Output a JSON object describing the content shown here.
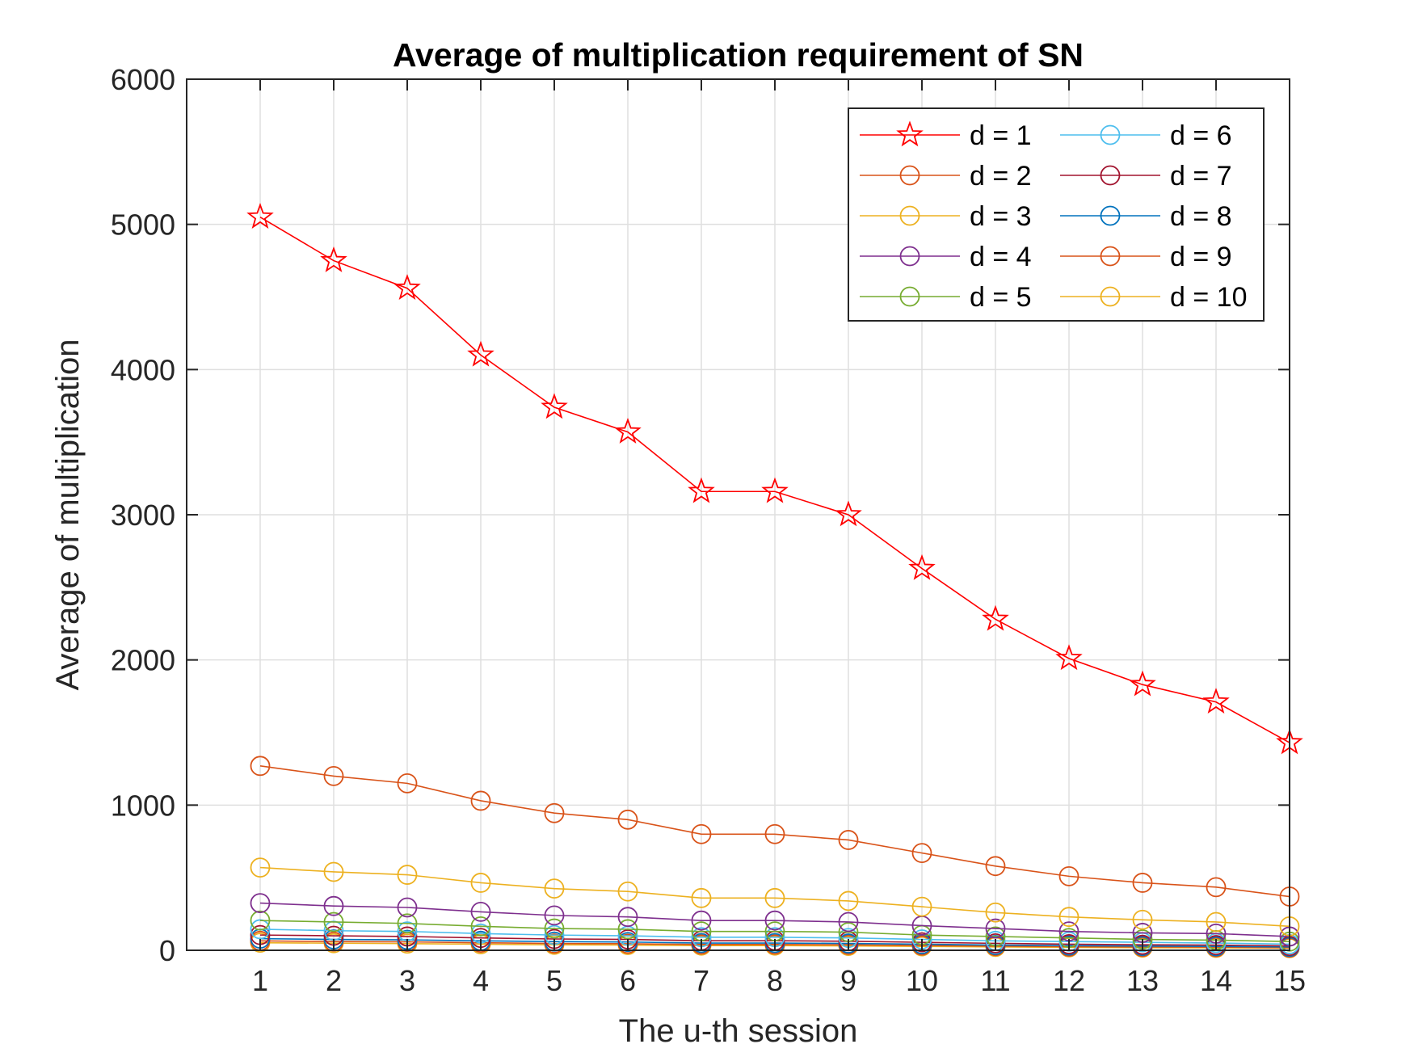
{
  "chart_data": {
    "type": "line",
    "title": "Average of multiplication requirement of SN",
    "xlabel": "The u-th session",
    "ylabel": "Average of multiplication",
    "x": [
      1,
      2,
      3,
      4,
      5,
      6,
      7,
      8,
      9,
      10,
      11,
      12,
      13,
      14,
      15
    ],
    "xticks": [
      "1",
      "2",
      "3",
      "4",
      "5",
      "6",
      "7",
      "8",
      "9",
      "10",
      "11",
      "12",
      "13",
      "14",
      "15"
    ],
    "xlim": [
      0,
      15
    ],
    "ylim": [
      0,
      6000
    ],
    "yticks": [
      "0",
      "1000",
      "2000",
      "3000",
      "4000",
      "5000",
      "6000"
    ],
    "grid": true,
    "legend_position": "top-right",
    "legend_columns": 2,
    "series": [
      {
        "name": "d = 1",
        "color": "#ff0000",
        "marker": "star",
        "values": [
          5050,
          4750,
          4560,
          4100,
          3740,
          3570,
          3160,
          3160,
          3000,
          2630,
          2280,
          2010,
          1830,
          1710,
          1430
        ]
      },
      {
        "name": "d = 2",
        "color": "#d95319",
        "marker": "circle",
        "values": [
          1270,
          1200,
          1150,
          1030,
          945,
          900,
          800,
          800,
          760,
          670,
          580,
          510,
          465,
          435,
          370
        ]
      },
      {
        "name": "d = 3",
        "color": "#edb120",
        "marker": "circle",
        "values": [
          570,
          540,
          520,
          465,
          425,
          405,
          360,
          360,
          340,
          300,
          260,
          230,
          210,
          195,
          165
        ]
      },
      {
        "name": "d = 4",
        "color": "#7e2f8e",
        "marker": "circle",
        "values": [
          325,
          305,
          295,
          265,
          240,
          230,
          205,
          205,
          195,
          170,
          150,
          130,
          120,
          115,
          95
        ]
      },
      {
        "name": "d = 5",
        "color": "#77ac30",
        "marker": "circle",
        "values": [
          205,
          195,
          185,
          165,
          150,
          145,
          130,
          130,
          125,
          105,
          95,
          85,
          75,
          70,
          60
        ]
      },
      {
        "name": "d = 6",
        "color": "#4dbeee",
        "marker": "circle",
        "values": [
          145,
          135,
          130,
          115,
          105,
          100,
          90,
          90,
          85,
          75,
          65,
          60,
          55,
          50,
          42
        ]
      },
      {
        "name": "d = 7",
        "color": "#a2142f",
        "marker": "circle",
        "values": [
          105,
          100,
          95,
          85,
          78,
          75,
          66,
          66,
          62,
          55,
          48,
          42,
          38,
          36,
          30
        ]
      },
      {
        "name": "d = 8",
        "color": "#0072bd",
        "marker": "circle",
        "values": [
          80,
          75,
          72,
          65,
          60,
          57,
          50,
          50,
          47,
          42,
          36,
          32,
          29,
          27,
          23
        ]
      },
      {
        "name": "d = 9",
        "color": "#d95319",
        "marker": "circle",
        "values": [
          65,
          60,
          58,
          52,
          47,
          45,
          40,
          40,
          38,
          33,
          29,
          25,
          23,
          22,
          18
        ]
      },
      {
        "name": "d = 10",
        "color": "#edb120",
        "marker": "circle",
        "values": [
          52,
          49,
          46,
          42,
          38,
          36,
          32,
          32,
          30,
          27,
          23,
          20,
          18,
          17,
          15
        ]
      }
    ]
  }
}
